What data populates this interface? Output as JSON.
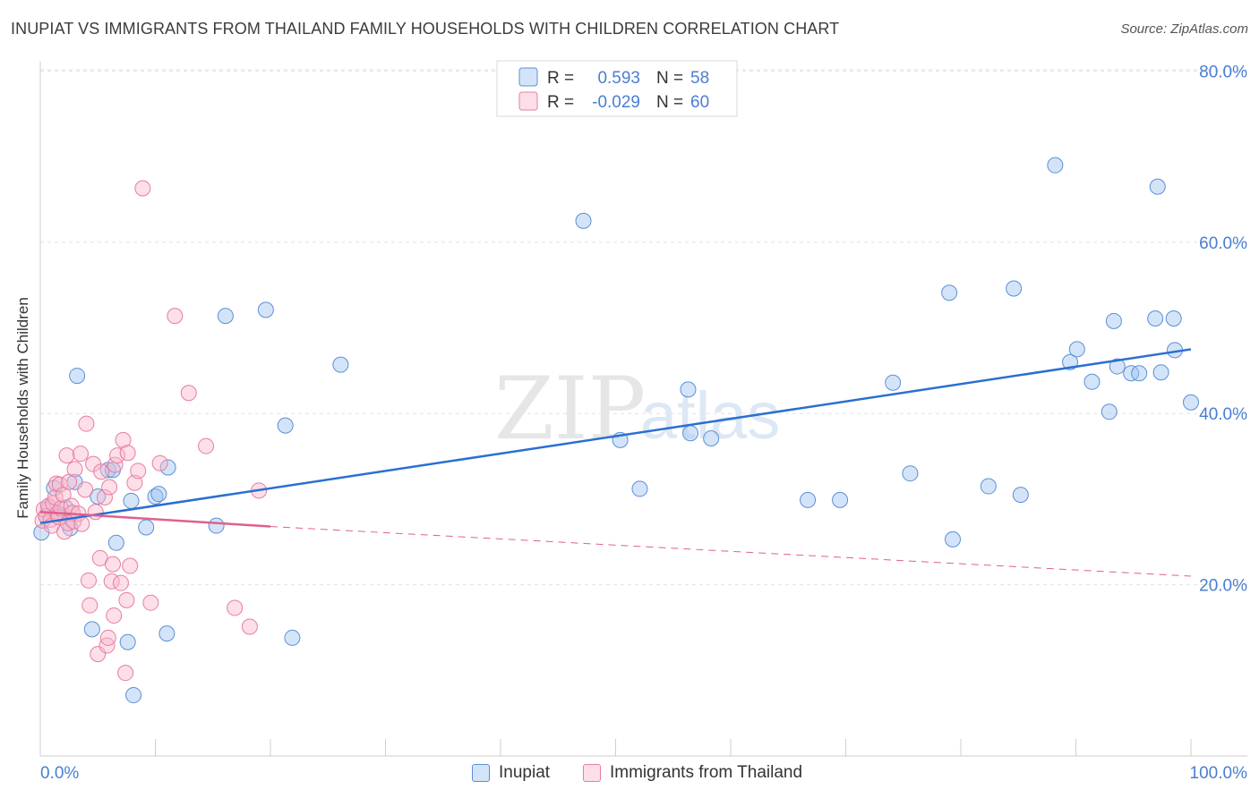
{
  "title": "INUPIAT VS IMMIGRANTS FROM THAILAND FAMILY HOUSEHOLDS WITH CHILDREN CORRELATION CHART",
  "source": "Source: ZipAtlas.com",
  "watermark": {
    "zip": "ZIP",
    "atlas": "atlas"
  },
  "colors": {
    "series1": "#5b8fd6",
    "series1_fill": "rgba(160,195,240,0.45)",
    "series1_line": "#2a6fd0",
    "series2": "#e87da0",
    "series2_fill": "rgba(248,185,205,0.45)",
    "series2_line": "#e0608c",
    "axis_text": "#4a7fd1",
    "grid": "#e2e2e2"
  },
  "stats_box": {
    "rows": [
      {
        "r_label": "R =",
        "r_value": "0.593",
        "n_label": "N =",
        "n_value": "58"
      },
      {
        "r_label": "R =",
        "r_value": "-0.029",
        "n_label": "N =",
        "n_value": "60"
      }
    ]
  },
  "chart_data": {
    "type": "scatter",
    "title": "INUPIAT VS IMMIGRANTS FROM THAILAND FAMILY HOUSEHOLDS WITH CHILDREN CORRELATION CHART",
    "xlabel": "",
    "ylabel": "Family Households with Children",
    "xlim": [
      0,
      100
    ],
    "ylim": [
      0,
      84
    ],
    "x_ticks": [
      "0.0%",
      "100.0%"
    ],
    "y_ticks": [
      {
        "value": 20,
        "label": "20.0%"
      },
      {
        "value": 40,
        "label": "40.0%"
      },
      {
        "value": 60,
        "label": "60.0%"
      },
      {
        "value": 80,
        "label": "80.0%"
      }
    ],
    "grid": true,
    "legend_position": "bottom-center",
    "series": [
      {
        "name": "Inupiat",
        "r": 0.593,
        "n": 58,
        "trend": {
          "x": [
            0,
            100
          ],
          "y": [
            27.2,
            47.5
          ],
          "style": "solid"
        },
        "points": [
          [
            0.1,
            26.1
          ],
          [
            0.5,
            28.0
          ],
          [
            0.8,
            29.0
          ],
          [
            1.2,
            31.3
          ],
          [
            1.6,
            28.2
          ],
          [
            2.2,
            29.0
          ],
          [
            2.6,
            26.6
          ],
          [
            3.0,
            32.0
          ],
          [
            3.2,
            44.4
          ],
          [
            4.5,
            14.8
          ],
          [
            5.0,
            30.3
          ],
          [
            5.9,
            33.4
          ],
          [
            6.3,
            33.4
          ],
          [
            6.6,
            24.9
          ],
          [
            7.6,
            13.3
          ],
          [
            7.9,
            29.8
          ],
          [
            8.1,
            7.1
          ],
          [
            9.2,
            26.7
          ],
          [
            10.0,
            30.3
          ],
          [
            10.3,
            30.6
          ],
          [
            11.0,
            14.3
          ],
          [
            11.1,
            33.7
          ],
          [
            15.3,
            26.9
          ],
          [
            16.1,
            51.4
          ],
          [
            19.6,
            52.1
          ],
          [
            21.3,
            38.6
          ],
          [
            21.9,
            13.8
          ],
          [
            26.1,
            45.7
          ],
          [
            47.2,
            62.5
          ],
          [
            50.4,
            36.9
          ],
          [
            52.1,
            31.2
          ],
          [
            56.3,
            42.8
          ],
          [
            56.5,
            37.7
          ],
          [
            58.3,
            37.1
          ],
          [
            66.7,
            29.9
          ],
          [
            69.5,
            29.9
          ],
          [
            74.1,
            43.6
          ],
          [
            75.6,
            33.0
          ],
          [
            79.0,
            54.1
          ],
          [
            79.3,
            25.3
          ],
          [
            82.4,
            31.5
          ],
          [
            84.6,
            54.6
          ],
          [
            85.2,
            30.5
          ],
          [
            88.2,
            69.0
          ],
          [
            89.5,
            46.0
          ],
          [
            90.1,
            47.5
          ],
          [
            91.4,
            43.7
          ],
          [
            92.9,
            40.2
          ],
          [
            93.3,
            50.8
          ],
          [
            93.6,
            45.5
          ],
          [
            94.8,
            44.7
          ],
          [
            95.5,
            44.7
          ],
          [
            96.9,
            51.1
          ],
          [
            97.1,
            66.5
          ],
          [
            97.4,
            44.8
          ],
          [
            98.5,
            51.1
          ],
          [
            98.6,
            47.4
          ],
          [
            100.0,
            41.3
          ]
        ]
      },
      {
        "name": "Immigrants from Thailand",
        "r": -0.029,
        "n": 60,
        "trend": {
          "x": [
            0,
            20,
            100
          ],
          "y": [
            28.5,
            26.8,
            21.0
          ],
          "style": "solid-then-dashed",
          "solid_until": 20
        },
        "points": [
          [
            0.2,
            27.5
          ],
          [
            0.3,
            28.8
          ],
          [
            0.5,
            28.0
          ],
          [
            0.7,
            29.2
          ],
          [
            0.9,
            27.6
          ],
          [
            1.0,
            26.9
          ],
          [
            1.1,
            29.5
          ],
          [
            1.3,
            30.2
          ],
          [
            1.4,
            31.8
          ],
          [
            1.5,
            28.3
          ],
          [
            1.6,
            27.9
          ],
          [
            1.7,
            31.7
          ],
          [
            1.8,
            28.9
          ],
          [
            2.0,
            30.5
          ],
          [
            2.1,
            26.2
          ],
          [
            2.3,
            35.1
          ],
          [
            2.4,
            27.2
          ],
          [
            2.5,
            32.0
          ],
          [
            2.7,
            29.2
          ],
          [
            2.8,
            28.4
          ],
          [
            2.9,
            27.4
          ],
          [
            3.0,
            33.5
          ],
          [
            3.3,
            28.3
          ],
          [
            3.5,
            35.3
          ],
          [
            3.6,
            27.1
          ],
          [
            3.9,
            31.1
          ],
          [
            4.0,
            38.8
          ],
          [
            4.2,
            20.5
          ],
          [
            4.3,
            17.6
          ],
          [
            4.6,
            34.1
          ],
          [
            4.8,
            28.5
          ],
          [
            5.0,
            11.9
          ],
          [
            5.2,
            23.1
          ],
          [
            5.3,
            33.2
          ],
          [
            5.6,
            30.2
          ],
          [
            5.8,
            12.9
          ],
          [
            5.9,
            13.8
          ],
          [
            6.0,
            31.4
          ],
          [
            6.2,
            20.4
          ],
          [
            6.3,
            22.4
          ],
          [
            6.4,
            16.4
          ],
          [
            6.5,
            34.0
          ],
          [
            6.7,
            35.1
          ],
          [
            7.0,
            20.2
          ],
          [
            7.2,
            36.9
          ],
          [
            7.4,
            9.7
          ],
          [
            7.5,
            18.2
          ],
          [
            7.6,
            35.4
          ],
          [
            7.8,
            22.2
          ],
          [
            8.2,
            31.9
          ],
          [
            8.5,
            33.3
          ],
          [
            8.9,
            66.3
          ],
          [
            9.6,
            17.9
          ],
          [
            10.4,
            34.2
          ],
          [
            11.7,
            51.4
          ],
          [
            12.9,
            42.4
          ],
          [
            14.4,
            36.2
          ],
          [
            16.9,
            17.3
          ],
          [
            18.2,
            15.1
          ],
          [
            19.0,
            31.0
          ]
        ]
      }
    ]
  }
}
